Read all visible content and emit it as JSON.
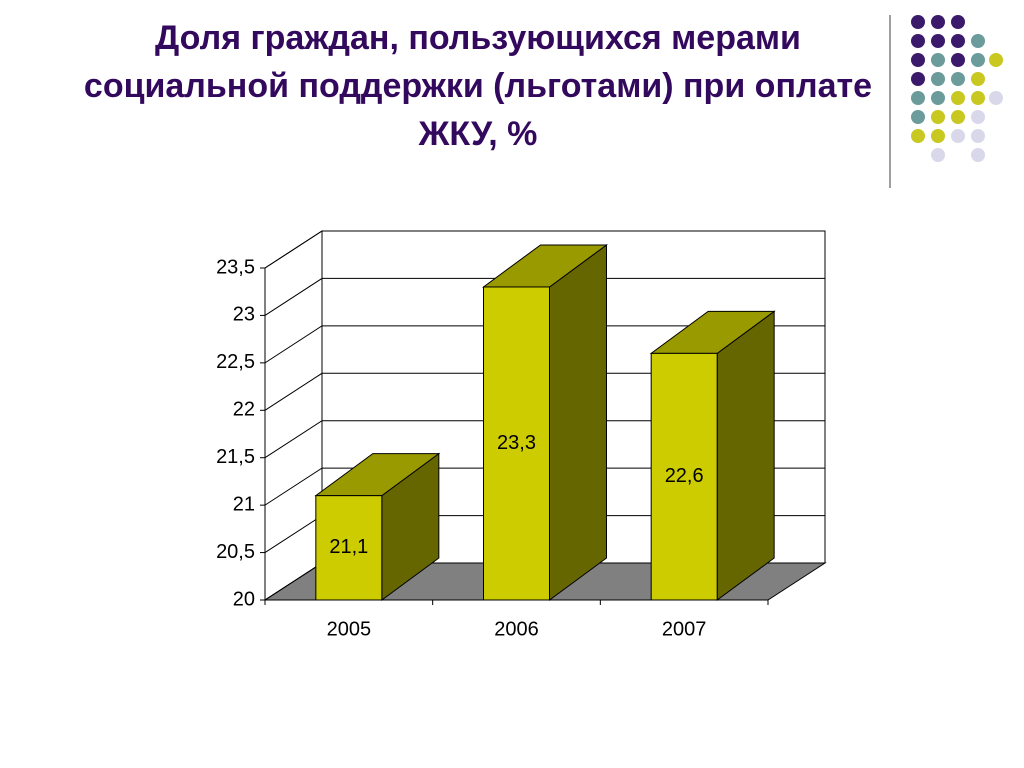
{
  "chart_data": {
    "type": "bar3d",
    "title": "Доля граждан, пользующихся мерами социальной поддержки (льготами) при оплате ЖКУ, %",
    "categories": [
      "2005",
      "2006",
      "2007"
    ],
    "values": [
      21.1,
      23.3,
      22.6
    ],
    "value_labels": [
      "21,1",
      "23,3",
      "22,6"
    ],
    "colors": {
      "front": "#cccc00",
      "top": "#999900",
      "side": "#666600",
      "floor": "#808080"
    },
    "ylim": [
      20,
      23.5
    ],
    "yticks": [
      20,
      {
        "value": 20.5,
        "label": "20,5"
      },
      21,
      {
        "value": 21.5,
        "label": "21,5"
      },
      22,
      {
        "value": 22.5,
        "label": "22,5"
      },
      23,
      {
        "value": 23.5,
        "label": "23,5"
      }
    ],
    "grid": true
  }
}
